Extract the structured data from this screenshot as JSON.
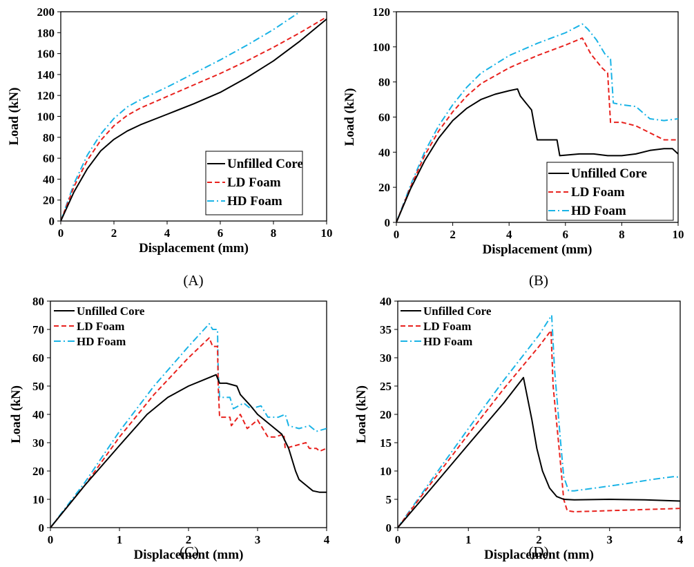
{
  "series_styles": {
    "Unfilled Core": {
      "color": "#000000",
      "dash": ""
    },
    "LD Foam": {
      "color": "#e8211d",
      "dash": "7,4"
    },
    "HD Foam": {
      "color": "#19b3e6",
      "dash": "10,4,2,4"
    }
  },
  "chart_data": [
    {
      "type": "line",
      "panel_label": "(A)",
      "xlabel": "Displacement (mm)",
      "ylabel": "Load (kN)",
      "xlim": [
        0,
        10
      ],
      "ylim": [
        0,
        200
      ],
      "xticks": [
        0,
        2,
        4,
        6,
        8,
        10
      ],
      "yticks": [
        0,
        20,
        40,
        60,
        80,
        100,
        120,
        140,
        160,
        180,
        200
      ],
      "grid": false,
      "legend_position": "bottom-right",
      "series": [
        {
          "name": "Unfilled Core",
          "x": [
            0,
            0.5,
            1,
            1.5,
            2,
            2.5,
            3,
            4,
            5,
            6,
            7,
            8,
            9,
            10
          ],
          "y": [
            0,
            28,
            50,
            67,
            78,
            86,
            92,
            102,
            112,
            123,
            137,
            153,
            172,
            193
          ]
        },
        {
          "name": "LD Foam",
          "x": [
            0,
            0.5,
            1,
            1.5,
            2,
            2.5,
            3,
            4,
            5,
            6,
            7,
            8,
            9,
            10
          ],
          "y": [
            0,
            33,
            58,
            77,
            91,
            101,
            108,
            119,
            130,
            141,
            153,
            166,
            180,
            195
          ]
        },
        {
          "name": "HD Foam",
          "x": [
            0,
            0.5,
            1,
            1.5,
            2,
            2.5,
            3,
            4,
            5,
            6,
            7,
            8,
            9
          ],
          "y": [
            0,
            36,
            63,
            83,
            98,
            109,
            116,
            128,
            141,
            154,
            168,
            183,
            200
          ]
        }
      ]
    },
    {
      "type": "line",
      "panel_label": "(B)",
      "xlabel": "Displacement (mm)",
      "ylabel": "Load (kN)",
      "xlim": [
        0,
        10
      ],
      "ylim": [
        0,
        120
      ],
      "xticks": [
        0,
        2,
        4,
        6,
        8,
        10
      ],
      "yticks": [
        0,
        20,
        40,
        60,
        80,
        100,
        120
      ],
      "grid": false,
      "legend_position": "bottom-right",
      "series": [
        {
          "name": "Unfilled Core",
          "x": [
            0,
            0.5,
            1,
            1.5,
            2,
            2.5,
            3,
            3.5,
            4,
            4.3,
            4.4,
            4.6,
            4.8,
            4.9,
            5.0,
            5.5,
            5.7,
            5.8,
            6.5,
            7.0,
            7.5,
            8.0,
            8.5,
            9.0,
            9.5,
            9.8,
            10.0
          ],
          "y": [
            0,
            19,
            35,
            48,
            58,
            65,
            70,
            73,
            75,
            76,
            72,
            68,
            64,
            55,
            47,
            47,
            47,
            38,
            39,
            39,
            38,
            38,
            39,
            41,
            42,
            42,
            39
          ]
        },
        {
          "name": "LD Foam",
          "x": [
            0,
            0.5,
            1,
            1.5,
            2,
            2.5,
            3,
            4,
            5,
            6,
            6.6,
            6.7,
            6.9,
            7.0,
            7.3,
            7.5,
            7.6,
            8.0,
            8.5,
            9.0,
            9.5,
            10.0
          ],
          "y": [
            0,
            20,
            38,
            52,
            63,
            72,
            79,
            88,
            95,
            101,
            105,
            102,
            96,
            94,
            88,
            85,
            57,
            57,
            55,
            51,
            47,
            47
          ]
        },
        {
          "name": "HD Foam",
          "x": [
            0,
            0.5,
            1,
            1.5,
            2,
            2.5,
            3,
            4,
            5,
            6,
            6.6,
            6.8,
            7.1,
            7.4,
            7.6,
            7.7,
            8.0,
            8.5,
            9.0,
            9.5,
            10.0
          ],
          "y": [
            0,
            21,
            40,
            55,
            67,
            77,
            85,
            95,
            102,
            108,
            113,
            110,
            104,
            96,
            93,
            68,
            67,
            66,
            59,
            58,
            59
          ]
        }
      ]
    },
    {
      "type": "line",
      "panel_label": "(C)",
      "xlabel": "Displacement (mm)",
      "ylabel": "Load (kN)",
      "xlim": [
        0,
        4
      ],
      "ylim": [
        0,
        80
      ],
      "xticks": [
        0,
        1,
        2,
        3,
        4
      ],
      "yticks": [
        0,
        10,
        20,
        30,
        40,
        50,
        60,
        70,
        80
      ],
      "grid": false,
      "legend_position": "top-left",
      "series": [
        {
          "name": "Unfilled Core",
          "x": [
            0,
            0.5,
            1,
            1.4,
            1.7,
            2.0,
            2.2,
            2.4,
            2.45,
            2.55,
            2.7,
            2.75,
            2.9,
            3.0,
            3.2,
            3.35,
            3.45,
            3.55,
            3.6,
            3.7,
            3.8,
            3.9,
            4.0
          ],
          "y": [
            0,
            15,
            29,
            40,
            46,
            50,
            52,
            54,
            51,
            51,
            50,
            47,
            43,
            40,
            36,
            33,
            28,
            20,
            17,
            15,
            13,
            12.5,
            12.5
          ]
        },
        {
          "name": "LD Foam",
          "x": [
            0,
            0.5,
            1,
            1.5,
            2.0,
            2.3,
            2.35,
            2.42,
            2.43,
            2.45,
            2.6,
            2.62,
            2.75,
            2.85,
            3.0,
            3.15,
            3.25,
            3.38,
            3.4,
            3.55,
            3.7,
            3.75,
            3.85,
            3.9,
            4.0
          ],
          "y": [
            0,
            15,
            32,
            47,
            60,
            67,
            64,
            64,
            50,
            39,
            39,
            36,
            40,
            35,
            38,
            32,
            32,
            33,
            28,
            29,
            30,
            28,
            28,
            27,
            28
          ]
        },
        {
          "name": "HD Foam",
          "x": [
            0,
            0.5,
            1,
            1.5,
            2.0,
            2.3,
            2.35,
            2.42,
            2.43,
            2.45,
            2.6,
            2.65,
            2.8,
            2.9,
            3.05,
            3.15,
            3.3,
            3.4,
            3.45,
            3.6,
            3.75,
            3.85,
            4.0
          ],
          "y": [
            0,
            16,
            34,
            50,
            64,
            72,
            70,
            70,
            55,
            46,
            46,
            42,
            44,
            42,
            43,
            39,
            39,
            40,
            36,
            35,
            36,
            34,
            35
          ]
        }
      ]
    },
    {
      "type": "line",
      "panel_label": "(D)",
      "xlabel": "Displacement (mm)",
      "ylabel": "Load (kN)",
      "xlim": [
        0,
        4
      ],
      "ylim": [
        0,
        40
      ],
      "xticks": [
        0,
        1,
        2,
        3,
        4
      ],
      "yticks": [
        0,
        5,
        10,
        15,
        20,
        25,
        30,
        35,
        40
      ],
      "grid": false,
      "legend_position": "top-left",
      "series": [
        {
          "name": "Unfilled Core",
          "x": [
            0,
            0.5,
            1,
            1.5,
            1.78,
            1.82,
            1.9,
            1.97,
            2.05,
            2.15,
            2.25,
            2.35,
            2.5,
            3.0,
            3.5,
            4.0
          ],
          "y": [
            0,
            7.3,
            14.7,
            22,
            26.5,
            24,
            19,
            14,
            10,
            7,
            5.5,
            5,
            4.9,
            5,
            4.9,
            4.7
          ]
        },
        {
          "name": "LD Foam",
          "x": [
            0,
            0.5,
            1,
            1.5,
            2.0,
            2.17,
            2.2,
            2.3,
            2.35,
            2.4,
            2.5,
            3.0,
            3.5,
            4.0
          ],
          "y": [
            0,
            8.3,
            16.5,
            24.5,
            32,
            34.8,
            25,
            12,
            5,
            3,
            2.8,
            3,
            3.2,
            3.4
          ]
        },
        {
          "name": "HD Foam",
          "x": [
            0,
            0.5,
            1,
            1.5,
            2.0,
            2.18,
            2.22,
            2.3,
            2.35,
            2.42,
            2.5,
            2.8,
            3.2,
            3.6,
            3.9,
            4.0
          ],
          "y": [
            0,
            8.8,
            17.5,
            26,
            34,
            37.5,
            28,
            16,
            9,
            6.5,
            6.5,
            7,
            7.7,
            8.5,
            9,
            8.9
          ]
        }
      ]
    }
  ]
}
